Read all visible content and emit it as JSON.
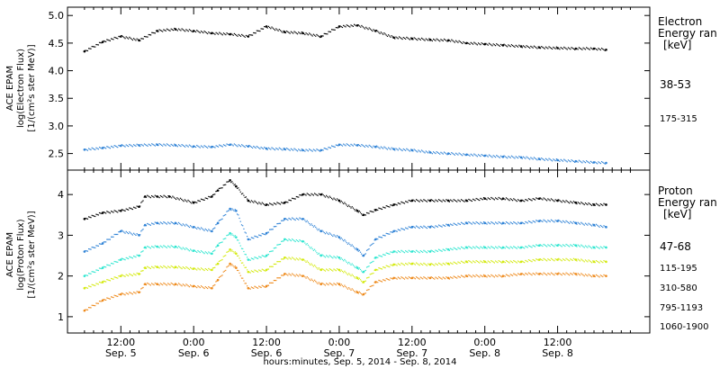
{
  "chart_data": [
    {
      "type": "scatter",
      "panel": "electron",
      "ylabel_lines": [
        "ACE EPAM",
        "log(Electron Flux)",
        "[1/(cm²s ster MeV)]"
      ],
      "ylim": [
        2.2,
        5.15
      ],
      "yticks": [
        2.5,
        3.0,
        3.5,
        4.0,
        4.5,
        5.0
      ],
      "ytick_labels": [
        "2.5",
        "3.0",
        "3.5",
        "4.0",
        "4.5",
        "5.0"
      ],
      "legend_title_lines": [
        "Electron",
        "Energy ran",
        "[keV]"
      ],
      "series": [
        {
          "name": "38-53",
          "color": "#000000",
          "points": [
            [
              0,
              4.35
            ],
            [
              3,
              4.52
            ],
            [
              6,
              4.62
            ],
            [
              9,
              4.55
            ],
            [
              12,
              4.72
            ],
            [
              15,
              4.75
            ],
            [
              18,
              4.72
            ],
            [
              21,
              4.68
            ],
            [
              24,
              4.66
            ],
            [
              27,
              4.62
            ],
            [
              30,
              4.8
            ],
            [
              33,
              4.7
            ],
            [
              36,
              4.68
            ],
            [
              39,
              4.62
            ],
            [
              42,
              4.8
            ],
            [
              45,
              4.82
            ],
            [
              48,
              4.72
            ],
            [
              51,
              4.6
            ],
            [
              54,
              4.58
            ],
            [
              57,
              4.56
            ],
            [
              60,
              4.55
            ],
            [
              63,
              4.5
            ],
            [
              66,
              4.48
            ],
            [
              69,
              4.46
            ],
            [
              72,
              4.44
            ],
            [
              75,
              4.42
            ],
            [
              78,
              4.41
            ],
            [
              81,
              4.4
            ],
            [
              84,
              4.4
            ],
            [
              86,
              4.38
            ]
          ]
        },
        {
          "name": "175-315",
          "color": "#2e82d6",
          "points": [
            [
              0,
              2.57
            ],
            [
              3,
              2.6
            ],
            [
              6,
              2.64
            ],
            [
              9,
              2.65
            ],
            [
              12,
              2.66
            ],
            [
              15,
              2.65
            ],
            [
              18,
              2.63
            ],
            [
              21,
              2.62
            ],
            [
              24,
              2.66
            ],
            [
              27,
              2.63
            ],
            [
              30,
              2.59
            ],
            [
              33,
              2.58
            ],
            [
              36,
              2.56
            ],
            [
              39,
              2.56
            ],
            [
              42,
              2.66
            ],
            [
              45,
              2.65
            ],
            [
              48,
              2.62
            ],
            [
              51,
              2.58
            ],
            [
              54,
              2.56
            ],
            [
              57,
              2.52
            ],
            [
              60,
              2.5
            ],
            [
              63,
              2.48
            ],
            [
              66,
              2.46
            ],
            [
              69,
              2.44
            ],
            [
              72,
              2.43
            ],
            [
              75,
              2.4
            ],
            [
              78,
              2.38
            ],
            [
              81,
              2.36
            ],
            [
              84,
              2.34
            ],
            [
              86,
              2.33
            ]
          ]
        }
      ]
    },
    {
      "type": "scatter",
      "panel": "proton",
      "ylabel_lines": [
        "ACE EPAM",
        "log(Proton Flux)",
        "[1/(cm²s ster MeV)]"
      ],
      "ylim": [
        0.6,
        4.6
      ],
      "yticks": [
        1,
        2,
        3,
        4
      ],
      "ytick_labels": [
        "1",
        "2",
        "3",
        "4"
      ],
      "legend_title_lines": [
        "Proton",
        "Energy ran",
        "[keV]"
      ],
      "series": [
        {
          "name": "47-68",
          "color": "#000000",
          "points": [
            [
              0,
              3.4
            ],
            [
              3,
              3.55
            ],
            [
              6,
              3.6
            ],
            [
              9,
              3.7
            ],
            [
              10,
              3.95
            ],
            [
              12,
              3.95
            ],
            [
              14,
              3.95
            ],
            [
              18,
              3.8
            ],
            [
              21,
              3.95
            ],
            [
              22,
              4.1
            ],
            [
              24,
              4.35
            ],
            [
              25,
              4.2
            ],
            [
              27,
              3.85
            ],
            [
              30,
              3.75
            ],
            [
              33,
              3.8
            ],
            [
              36,
              4.0
            ],
            [
              39,
              4.0
            ],
            [
              42,
              3.85
            ],
            [
              45,
              3.6
            ],
            [
              46,
              3.5
            ],
            [
              48,
              3.62
            ],
            [
              51,
              3.75
            ],
            [
              54,
              3.85
            ],
            [
              57,
              3.85
            ],
            [
              60,
              3.85
            ],
            [
              63,
              3.85
            ],
            [
              66,
              3.9
            ],
            [
              69,
              3.9
            ],
            [
              72,
              3.85
            ],
            [
              75,
              3.9
            ],
            [
              78,
              3.85
            ],
            [
              81,
              3.8
            ],
            [
              84,
              3.75
            ],
            [
              86,
              3.75
            ]
          ]
        },
        {
          "name": "115-195",
          "color": "#2e82d6",
          "points": [
            [
              0,
              2.6
            ],
            [
              3,
              2.8
            ],
            [
              6,
              3.1
            ],
            [
              9,
              3.0
            ],
            [
              10,
              3.25
            ],
            [
              12,
              3.3
            ],
            [
              15,
              3.3
            ],
            [
              18,
              3.2
            ],
            [
              21,
              3.1
            ],
            [
              22,
              3.3
            ],
            [
              24,
              3.65
            ],
            [
              25,
              3.6
            ],
            [
              27,
              2.9
            ],
            [
              30,
              3.05
            ],
            [
              33,
              3.4
            ],
            [
              36,
              3.4
            ],
            [
              39,
              3.1
            ],
            [
              42,
              2.95
            ],
            [
              45,
              2.65
            ],
            [
              46,
              2.5
            ],
            [
              48,
              2.9
            ],
            [
              51,
              3.1
            ],
            [
              54,
              3.2
            ],
            [
              57,
              3.2
            ],
            [
              60,
              3.25
            ],
            [
              63,
              3.3
            ],
            [
              66,
              3.3
            ],
            [
              69,
              3.3
            ],
            [
              72,
              3.3
            ],
            [
              75,
              3.35
            ],
            [
              78,
              3.35
            ],
            [
              81,
              3.3
            ],
            [
              84,
              3.25
            ],
            [
              86,
              3.2
            ]
          ]
        },
        {
          "name": "310-580",
          "color": "#2ee6d0",
          "points": [
            [
              0,
              2.0
            ],
            [
              3,
              2.2
            ],
            [
              6,
              2.4
            ],
            [
              9,
              2.5
            ],
            [
              10,
              2.7
            ],
            [
              12,
              2.72
            ],
            [
              15,
              2.72
            ],
            [
              18,
              2.62
            ],
            [
              21,
              2.55
            ],
            [
              22,
              2.75
            ],
            [
              24,
              3.05
            ],
            [
              25,
              2.95
            ],
            [
              27,
              2.4
            ],
            [
              30,
              2.5
            ],
            [
              33,
              2.9
            ],
            [
              36,
              2.85
            ],
            [
              39,
              2.5
            ],
            [
              42,
              2.45
            ],
            [
              45,
              2.2
            ],
            [
              46,
              2.1
            ],
            [
              48,
              2.45
            ],
            [
              51,
              2.6
            ],
            [
              54,
              2.6
            ],
            [
              57,
              2.6
            ],
            [
              60,
              2.65
            ],
            [
              63,
              2.7
            ],
            [
              66,
              2.7
            ],
            [
              69,
              2.7
            ],
            [
              72,
              2.7
            ],
            [
              75,
              2.75
            ],
            [
              78,
              2.75
            ],
            [
              81,
              2.75
            ],
            [
              84,
              2.7
            ],
            [
              86,
              2.7
            ]
          ]
        },
        {
          "name": "795-1193",
          "color": "#d4ea10",
          "points": [
            [
              0,
              1.7
            ],
            [
              3,
              1.85
            ],
            [
              6,
              2.0
            ],
            [
              9,
              2.05
            ],
            [
              10,
              2.2
            ],
            [
              12,
              2.22
            ],
            [
              15,
              2.22
            ],
            [
              18,
              2.18
            ],
            [
              21,
              2.15
            ],
            [
              22,
              2.3
            ],
            [
              24,
              2.65
            ],
            [
              25,
              2.55
            ],
            [
              27,
              2.1
            ],
            [
              30,
              2.15
            ],
            [
              33,
              2.45
            ],
            [
              36,
              2.4
            ],
            [
              39,
              2.15
            ],
            [
              42,
              2.15
            ],
            [
              45,
              1.95
            ],
            [
              46,
              1.85
            ],
            [
              48,
              2.15
            ],
            [
              51,
              2.28
            ],
            [
              54,
              2.3
            ],
            [
              57,
              2.28
            ],
            [
              60,
              2.3
            ],
            [
              63,
              2.35
            ],
            [
              66,
              2.35
            ],
            [
              69,
              2.35
            ],
            [
              72,
              2.35
            ],
            [
              75,
              2.4
            ],
            [
              78,
              2.4
            ],
            [
              81,
              2.4
            ],
            [
              84,
              2.35
            ],
            [
              86,
              2.35
            ]
          ]
        },
        {
          "name": "1060-1900",
          "color": "#ee8a1c",
          "points": [
            [
              0,
              1.15
            ],
            [
              3,
              1.4
            ],
            [
              6,
              1.55
            ],
            [
              9,
              1.6
            ],
            [
              10,
              1.8
            ],
            [
              12,
              1.8
            ],
            [
              15,
              1.8
            ],
            [
              18,
              1.75
            ],
            [
              21,
              1.7
            ],
            [
              22,
              1.9
            ],
            [
              24,
              2.3
            ],
            [
              25,
              2.2
            ],
            [
              27,
              1.7
            ],
            [
              30,
              1.75
            ],
            [
              33,
              2.05
            ],
            [
              36,
              2.0
            ],
            [
              39,
              1.8
            ],
            [
              42,
              1.8
            ],
            [
              45,
              1.6
            ],
            [
              46,
              1.55
            ],
            [
              48,
              1.85
            ],
            [
              51,
              1.95
            ],
            [
              54,
              1.95
            ],
            [
              57,
              1.95
            ],
            [
              60,
              1.95
            ],
            [
              63,
              2.0
            ],
            [
              66,
              2.0
            ],
            [
              69,
              2.0
            ],
            [
              72,
              2.05
            ],
            [
              75,
              2.05
            ],
            [
              78,
              2.05
            ],
            [
              81,
              2.05
            ],
            [
              84,
              2.0
            ],
            [
              86,
              2.0
            ]
          ]
        }
      ]
    }
  ],
  "x_axis": {
    "xlim": [
      -2.8,
      93.2
    ],
    "major_ticks": [
      {
        "x": 6,
        "time": "12:00",
        "day": "Sep. 5"
      },
      {
        "x": 18,
        "time": "0:00",
        "day": "Sep. 6"
      },
      {
        "x": 30,
        "time": "12:00",
        "day": "Sep. 6"
      },
      {
        "x": 42,
        "time": "0:00",
        "day": "Sep. 7"
      },
      {
        "x": 54,
        "time": "12:00",
        "day": "Sep. 7"
      },
      {
        "x": 66,
        "time": "0:00",
        "day": "Sep. 8"
      },
      {
        "x": 78,
        "time": "12:00",
        "day": "Sep. 8"
      }
    ],
    "xlabel": "hours:minutes, Sep.  5, 2014 - Sep.  8, 2014"
  }
}
